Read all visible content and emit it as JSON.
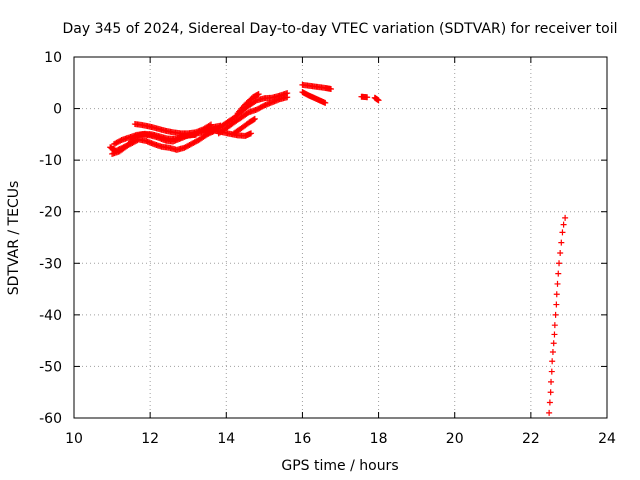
{
  "chart_data": {
    "type": "scatter",
    "title": "Day 345 of 2024, Sidereal Day-to-day VTEC variation (SDTVAR) for receiver toil",
    "xlabel": "GPS time / hours",
    "ylabel": "SDTVAR / TECUs",
    "xlim": [
      10,
      24
    ],
    "ylim": [
      -60,
      10
    ],
    "xticks": [
      "10",
      "12",
      "14",
      "16",
      "18",
      "20",
      "22",
      "24"
    ],
    "yticks": [
      "10",
      "0",
      "-10",
      "-20",
      "-30",
      "-40",
      "-50",
      "-60"
    ],
    "grid": true,
    "legend": "none",
    "marker": "plus",
    "color": "#ff0000",
    "segments": [
      {
        "points": [
          [
            10.95,
            -7.5
          ],
          [
            11.1,
            -8.2
          ],
          [
            11.3,
            -7.5
          ],
          [
            11.5,
            -6.8
          ],
          [
            11.7,
            -6.0
          ],
          [
            11.9,
            -6.3
          ],
          [
            12.1,
            -6.9
          ],
          [
            12.3,
            -7.4
          ],
          [
            12.5,
            -7.6
          ],
          [
            12.7,
            -8.0
          ],
          [
            12.9,
            -7.6
          ],
          [
            13.1,
            -6.8
          ],
          [
            13.3,
            -6.0
          ],
          [
            13.5,
            -5.0
          ],
          [
            13.7,
            -4.3
          ],
          [
            13.9,
            -4.6
          ],
          [
            14.1,
            -4.9
          ],
          [
            14.3,
            -5.2
          ],
          [
            14.5,
            -5.3
          ],
          [
            14.65,
            -4.8
          ]
        ]
      },
      {
        "points": [
          [
            11.0,
            -8.8
          ],
          [
            11.2,
            -8.3
          ],
          [
            11.4,
            -7.2
          ],
          [
            11.6,
            -5.5
          ],
          [
            11.8,
            -5.0
          ],
          [
            12.0,
            -5.2
          ],
          [
            12.2,
            -5.6
          ],
          [
            12.4,
            -6.2
          ],
          [
            12.6,
            -6.4
          ],
          [
            12.8,
            -5.8
          ],
          [
            13.0,
            -5.2
          ],
          [
            13.2,
            -5.1
          ]
        ]
      },
      {
        "points": [
          [
            11.05,
            -6.9
          ],
          [
            11.25,
            -6.1
          ],
          [
            11.45,
            -5.6
          ],
          [
            11.65,
            -5.1
          ],
          [
            11.85,
            -4.9
          ],
          [
            12.05,
            -5.0
          ],
          [
            12.25,
            -5.4
          ],
          [
            12.45,
            -5.8
          ],
          [
            12.65,
            -5.9
          ],
          [
            12.85,
            -5.4
          ],
          [
            13.05,
            -5.2
          ],
          [
            13.25,
            -4.8
          ],
          [
            13.45,
            -4.5
          ],
          [
            13.65,
            -3.6
          ],
          [
            13.85,
            -3.3
          ]
        ]
      },
      {
        "points": [
          [
            11.6,
            -3.0
          ],
          [
            11.8,
            -3.2
          ],
          [
            12.0,
            -3.5
          ],
          [
            12.2,
            -3.9
          ],
          [
            12.4,
            -4.3
          ],
          [
            12.6,
            -4.6
          ],
          [
            12.8,
            -4.8
          ],
          [
            13.0,
            -4.8
          ],
          [
            13.2,
            -4.6
          ],
          [
            13.4,
            -4.0
          ],
          [
            13.6,
            -3.1
          ]
        ]
      },
      {
        "points": [
          [
            13.6,
            -4.5
          ],
          [
            13.8,
            -3.8
          ],
          [
            14.0,
            -2.8
          ],
          [
            14.2,
            -1.8
          ],
          [
            14.4,
            -0.6
          ],
          [
            14.6,
            0.6
          ],
          [
            14.8,
            1.6
          ],
          [
            15.0,
            2.0
          ],
          [
            15.2,
            2.1
          ],
          [
            15.4,
            2.5
          ],
          [
            15.6,
            3.0
          ]
        ]
      },
      {
        "points": [
          [
            13.8,
            -4.8
          ],
          [
            14.0,
            -3.8
          ],
          [
            14.2,
            -2.7
          ],
          [
            14.4,
            -1.7
          ],
          [
            14.6,
            -0.7
          ],
          [
            14.8,
            -0.2
          ],
          [
            15.0,
            0.6
          ],
          [
            15.2,
            1.2
          ],
          [
            15.4,
            1.8
          ],
          [
            15.6,
            2.2
          ]
        ]
      },
      {
        "points": [
          [
            14.2,
            -4.8
          ],
          [
            14.4,
            -3.8
          ],
          [
            14.6,
            -2.7
          ],
          [
            14.75,
            -2.0
          ]
        ]
      },
      {
        "points": [
          [
            14.3,
            -0.9
          ],
          [
            14.5,
            0.8
          ],
          [
            14.7,
            2.2
          ],
          [
            14.85,
            2.8
          ]
        ]
      },
      {
        "points": [
          [
            16.0,
            3.2
          ],
          [
            16.15,
            2.6
          ],
          [
            16.3,
            2.1
          ],
          [
            16.45,
            1.6
          ],
          [
            16.6,
            1.1
          ]
        ]
      },
      {
        "points": [
          [
            16.0,
            4.6
          ],
          [
            16.2,
            4.4
          ],
          [
            16.4,
            4.2
          ],
          [
            16.6,
            4.0
          ],
          [
            16.75,
            3.8
          ]
        ]
      },
      {
        "points": [
          [
            17.55,
            2.3
          ],
          [
            17.7,
            2.2
          ]
        ]
      },
      {
        "points": [
          [
            17.9,
            2.1
          ],
          [
            18.0,
            1.6
          ]
        ]
      },
      {
        "points": [
          [
            22.48,
            -59.0
          ],
          [
            22.5,
            -57.0
          ],
          [
            22.52,
            -55.0
          ],
          [
            22.53,
            -53.0
          ],
          [
            22.55,
            -51.0
          ],
          [
            22.56,
            -49.0
          ],
          [
            22.58,
            -47.2
          ],
          [
            22.6,
            -45.5
          ],
          [
            22.62,
            -43.8
          ],
          [
            22.63,
            -42.0
          ],
          [
            22.65,
            -40.0
          ],
          [
            22.67,
            -38.0
          ],
          [
            22.68,
            -36.0
          ],
          [
            22.7,
            -34.0
          ],
          [
            22.72,
            -32.0
          ],
          [
            22.74,
            -30.0
          ],
          [
            22.77,
            -28.0
          ],
          [
            22.8,
            -26.0
          ],
          [
            22.83,
            -24.0
          ],
          [
            22.86,
            -22.5
          ],
          [
            22.9,
            -21.2
          ]
        ]
      }
    ]
  }
}
